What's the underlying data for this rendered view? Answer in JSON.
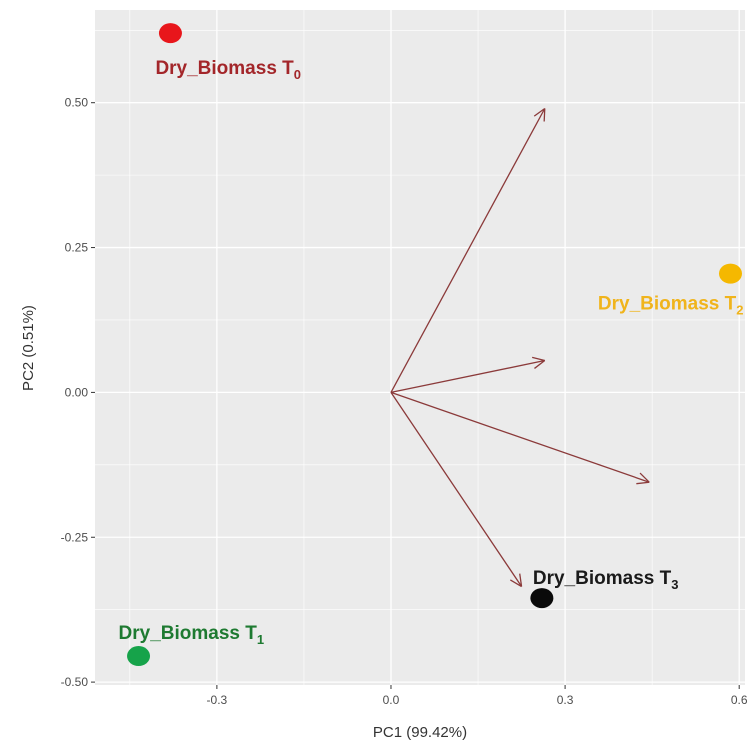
{
  "chart_data": {
    "type": "scatter",
    "title": "",
    "xlabel": "PC1 (99.42%)",
    "ylabel": "PC2 (0.51%)",
    "xlim": [
      -0.51,
      0.61
    ],
    "ylim": [
      -0.505,
      0.66
    ],
    "x_ticks": [
      {
        "value": -0.3,
        "label": "-0.3"
      },
      {
        "value": 0.0,
        "label": "0.0"
      },
      {
        "value": 0.3,
        "label": "0.3"
      },
      {
        "value": 0.6,
        "label": "0.6"
      }
    ],
    "y_ticks": [
      {
        "value": -0.5,
        "label": "-0.50"
      },
      {
        "value": -0.25,
        "label": "-0.25"
      },
      {
        "value": 0.0,
        "label": "0.00"
      },
      {
        "value": 0.25,
        "label": "0.25"
      },
      {
        "value": 0.5,
        "label": "0.50"
      }
    ],
    "grid": true,
    "panel_color": "#ebebeb",
    "grid_color": "#ffffff",
    "points": [
      {
        "label": "Dry_Biomass T",
        "subscript": "0",
        "x": -0.38,
        "y": 0.62,
        "color": "#e8161b",
        "label_color": "#a3262a"
      },
      {
        "label": "Dry_Biomass T",
        "subscript": "1",
        "x": -0.435,
        "y": -0.455,
        "color": "#16a34a",
        "label_color": "#1e7a31"
      },
      {
        "label": "Dry_Biomass T",
        "subscript": "2",
        "x": 0.585,
        "y": 0.205,
        "color": "#f5b800",
        "label_color": "#f0b41c"
      },
      {
        "label": "Dry_Biomass T",
        "subscript": "3",
        "x": 0.26,
        "y": -0.355,
        "color": "#0a0a0a",
        "label_color": "#1a1a1a"
      }
    ],
    "arrows": {
      "color": "#8b3a3a",
      "origin": [
        0,
        0
      ],
      "tips": [
        {
          "x": 0.265,
          "y": 0.49
        },
        {
          "x": 0.265,
          "y": 0.055
        },
        {
          "x": 0.445,
          "y": -0.155
        },
        {
          "x": 0.225,
          "y": -0.335
        }
      ]
    }
  }
}
